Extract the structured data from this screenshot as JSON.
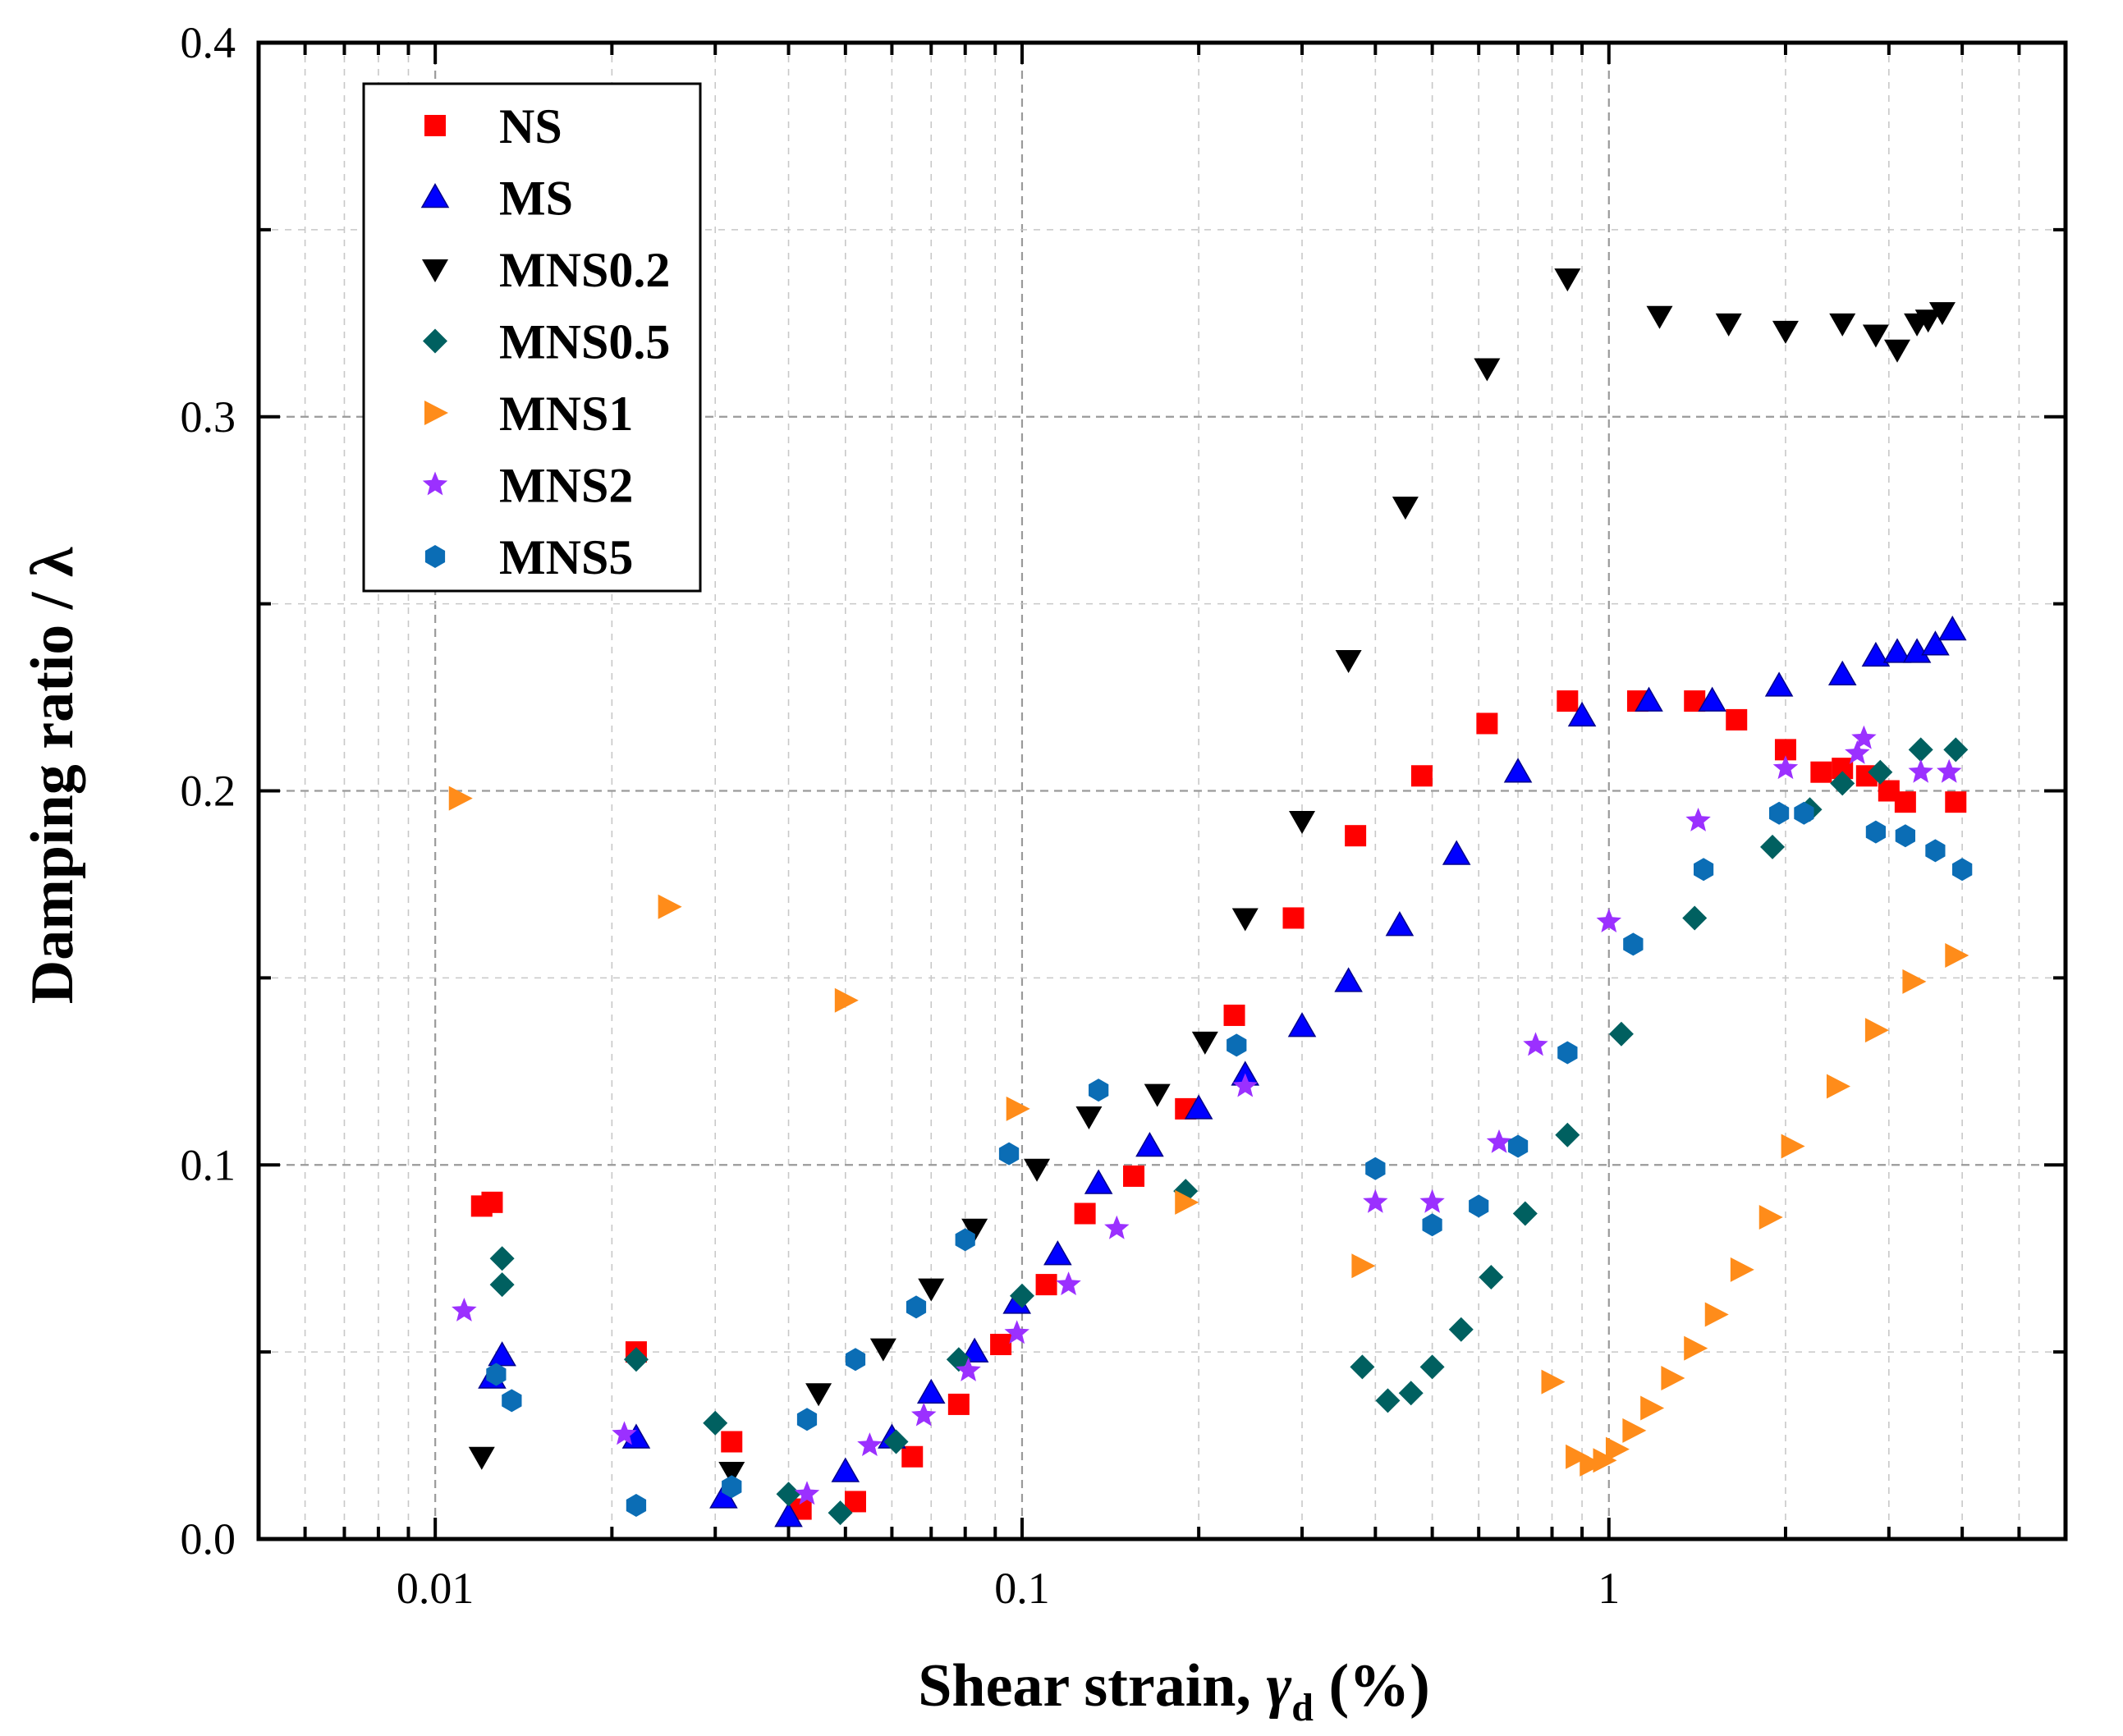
{
  "chart_data": {
    "type": "scatter",
    "title": "",
    "xlabel": "Shear strain, ",
    "xlabel_symbol": "γ",
    "xlabel_subscript": "d",
    "xlabel_unit": " (%)",
    "ylabel": "Damping ratio / λ",
    "xscale": "log",
    "xlim": [
      0.005,
      6
    ],
    "ylim": [
      0,
      0.4
    ],
    "xticks": [
      0.01,
      0.1,
      1
    ],
    "xtick_labels": [
      "0.01",
      "0.1",
      "1"
    ],
    "yticks": [
      0.0,
      0.1,
      0.2,
      0.3,
      0.4
    ],
    "ytick_labels": [
      "0.0",
      "0.1",
      "0.2",
      "0.3",
      "0.4"
    ],
    "grid": true,
    "legend_position": "top-left",
    "series": [
      {
        "name": "NS",
        "marker": "square",
        "color": "#ff0000",
        "x": [
          0.012,
          0.0125,
          0.022,
          0.032,
          0.042,
          0.052,
          0.065,
          0.078,
          0.092,
          0.11,
          0.128,
          0.155,
          0.19,
          0.23,
          0.29,
          0.37,
          0.48,
          0.62,
          0.85,
          1.12,
          1.4,
          1.65,
          2.0,
          2.3,
          2.5,
          2.75,
          3.0,
          3.2,
          3.9
        ],
        "y": [
          0.089,
          0.09,
          0.05,
          0.026,
          0.008,
          0.01,
          0.022,
          0.036,
          0.052,
          0.068,
          0.087,
          0.097,
          0.115,
          0.14,
          0.166,
          0.188,
          0.204,
          0.218,
          0.224,
          0.224,
          0.224,
          0.219,
          0.211,
          0.205,
          0.206,
          0.204,
          0.2,
          0.197,
          0.197
        ]
      },
      {
        "name": "MS",
        "marker": "triangle-up",
        "color": "#0000ff",
        "x": [
          0.0125,
          0.013,
          0.022,
          0.031,
          0.04,
          0.05,
          0.06,
          0.07,
          0.083,
          0.098,
          0.115,
          0.135,
          0.165,
          0.2,
          0.24,
          0.3,
          0.36,
          0.44,
          0.55,
          0.7,
          0.9,
          1.17,
          1.5,
          1.95,
          2.5,
          2.85,
          3.1,
          3.35,
          3.6,
          3.85
        ],
        "y": [
          0.043,
          0.049,
          0.027,
          0.011,
          0.006,
          0.018,
          0.027,
          0.039,
          0.05,
          0.063,
          0.076,
          0.095,
          0.105,
          0.115,
          0.124,
          0.137,
          0.149,
          0.164,
          0.183,
          0.205,
          0.22,
          0.224,
          0.224,
          0.228,
          0.231,
          0.236,
          0.237,
          0.237,
          0.239,
          0.243
        ]
      },
      {
        "name": "MNS0.2",
        "marker": "triangle-down",
        "color": "#000000",
        "x": [
          0.012,
          0.032,
          0.045,
          0.058,
          0.07,
          0.083,
          0.106,
          0.13,
          0.17,
          0.205,
          0.24,
          0.3,
          0.36,
          0.45,
          0.62,
          0.85,
          1.22,
          1.6,
          2.0,
          2.5,
          2.85,
          3.1,
          3.35,
          3.5,
          3.7
        ],
        "y": [
          0.022,
          0.018,
          0.039,
          0.051,
          0.067,
          0.083,
          0.099,
          0.113,
          0.119,
          0.133,
          0.166,
          0.192,
          0.235,
          0.276,
          0.313,
          0.337,
          0.327,
          0.325,
          0.323,
          0.325,
          0.322,
          0.318,
          0.325,
          0.326,
          0.328
        ]
      },
      {
        "name": "MNS0.5",
        "marker": "diamond",
        "color": "#006060",
        "x": [
          0.013,
          0.013,
          0.022,
          0.03,
          0.04,
          0.049,
          0.061,
          0.078,
          0.1,
          0.19,
          0.38,
          0.42,
          0.46,
          0.5,
          0.56,
          0.63,
          0.72,
          0.85,
          1.05,
          1.4,
          1.9,
          2.2,
          2.5,
          2.9,
          3.4,
          3.9
        ],
        "y": [
          0.075,
          0.068,
          0.048,
          0.031,
          0.012,
          0.007,
          0.026,
          0.048,
          0.065,
          0.093,
          0.046,
          0.037,
          0.039,
          0.046,
          0.056,
          0.07,
          0.087,
          0.108,
          0.135,
          0.166,
          0.185,
          0.195,
          0.202,
          0.205,
          0.211,
          0.211
        ]
      },
      {
        "name": "MNS1",
        "marker": "triangle-right",
        "color": "#ff8c1a",
        "x": [
          0.011,
          0.025,
          0.05,
          0.098,
          0.19,
          0.38,
          0.8,
          0.88,
          0.93,
          0.98,
          1.03,
          1.1,
          1.18,
          1.28,
          1.4,
          1.52,
          1.68,
          1.88,
          2.05,
          2.45,
          2.85,
          3.3,
          3.9
        ],
        "y": [
          0.198,
          0.169,
          0.144,
          0.115,
          0.09,
          0.073,
          0.042,
          0.022,
          0.02,
          0.021,
          0.024,
          0.029,
          0.035,
          0.043,
          0.051,
          0.06,
          0.072,
          0.086,
          0.105,
          0.121,
          0.136,
          0.149,
          0.156
        ]
      },
      {
        "name": "MNS2",
        "marker": "star",
        "color": "#9b30ff",
        "x": [
          0.0112,
          0.021,
          0.043,
          0.055,
          0.068,
          0.081,
          0.098,
          0.12,
          0.145,
          0.24,
          0.4,
          0.5,
          0.65,
          0.75,
          1.0,
          1.42,
          2.0,
          2.65,
          2.72,
          3.4,
          3.8
        ],
        "y": [
          0.061,
          0.028,
          0.012,
          0.025,
          0.033,
          0.045,
          0.055,
          0.068,
          0.083,
          0.121,
          0.09,
          0.09,
          0.106,
          0.132,
          0.165,
          0.192,
          0.206,
          0.21,
          0.214,
          0.205,
          0.205
        ]
      },
      {
        "name": "MNS5",
        "marker": "hexagon",
        "color": "#0b6db5",
        "x": [
          0.0127,
          0.0135,
          0.022,
          0.032,
          0.043,
          0.052,
          0.066,
          0.08,
          0.095,
          0.135,
          0.232,
          0.4,
          0.5,
          0.6,
          0.7,
          0.85,
          1.1,
          1.45,
          1.95,
          2.15,
          2.85,
          3.2,
          3.6,
          4.0
        ],
        "y": [
          0.044,
          0.037,
          0.009,
          0.014,
          0.032,
          0.048,
          0.062,
          0.08,
          0.103,
          0.12,
          0.132,
          0.099,
          0.084,
          0.089,
          0.105,
          0.13,
          0.159,
          0.179,
          0.194,
          0.194,
          0.189,
          0.188,
          0.184,
          0.179
        ]
      }
    ]
  }
}
